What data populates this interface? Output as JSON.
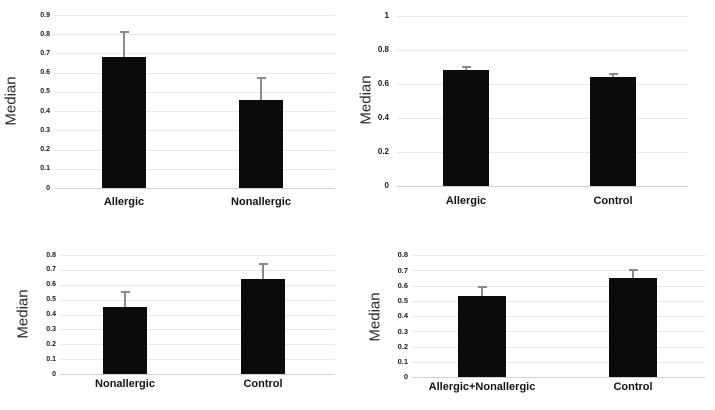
{
  "figure": {
    "description": "Four bar charts comparing Median values with upper error bars",
    "background": "#ffffff"
  },
  "colors": {
    "bar": "#0b0b0b",
    "gridline": "#e8e8e8",
    "baseline": "#d0d0d0",
    "error_bar": "#8a8a8a",
    "tick_text": "#1a1a1a",
    "label_text": "#141414",
    "ylabel_text": "#2b2b2b"
  },
  "chart_data": [
    {
      "type": "bar",
      "id": "top-left",
      "title": "",
      "xlabel": "",
      "ylabel": "Median",
      "categories": [
        "Allergic",
        "Nonallergic"
      ],
      "values": [
        0.68,
        0.46
      ],
      "error_top": [
        0.81,
        0.57
      ],
      "ylim": [
        0,
        0.9
      ],
      "yticks": [
        "0.9",
        "0.8",
        "0.7",
        "0.6",
        "0.5",
        "0.4",
        "0.3",
        "0.2",
        "0.1",
        "0"
      ],
      "grid": true,
      "legend": false
    },
    {
      "type": "bar",
      "id": "top-right",
      "title": "",
      "xlabel": "",
      "ylabel": "Median",
      "categories": [
        "Allergic",
        "Control"
      ],
      "values": [
        0.68,
        0.64
      ],
      "error_top": [
        0.7,
        0.66
      ],
      "ylim": [
        0,
        1
      ],
      "yticks": [
        "1",
        "0.8",
        "0.6",
        "0.4",
        "0.2",
        "0"
      ],
      "grid": true,
      "legend": false
    },
    {
      "type": "bar",
      "id": "bottom-left",
      "title": "",
      "xlabel": "",
      "ylabel": "Median",
      "categories": [
        "Nonallergic",
        "Control"
      ],
      "values": [
        0.45,
        0.64
      ],
      "error_top": [
        0.55,
        0.74
      ],
      "ylim": [
        0,
        0.8
      ],
      "yticks": [
        "0.8",
        "0.7",
        "0.6",
        "0.5",
        "0.4",
        "0.3",
        "0.2",
        "0.1",
        "0"
      ],
      "grid": true,
      "legend": false
    },
    {
      "type": "bar",
      "id": "bottom-right",
      "title": "",
      "xlabel": "",
      "ylabel": "Median",
      "categories": [
        "Allergic+Nonallergic",
        "Control"
      ],
      "values": [
        0.53,
        0.65
      ],
      "error_top": [
        0.59,
        0.7
      ],
      "ylim": [
        0,
        0.8
      ],
      "yticks": [
        "0.8",
        "0.7",
        "0.6",
        "0.5",
        "0.4",
        "0.3",
        "0.2",
        "0.1",
        "0"
      ],
      "grid": true,
      "legend": false
    }
  ]
}
